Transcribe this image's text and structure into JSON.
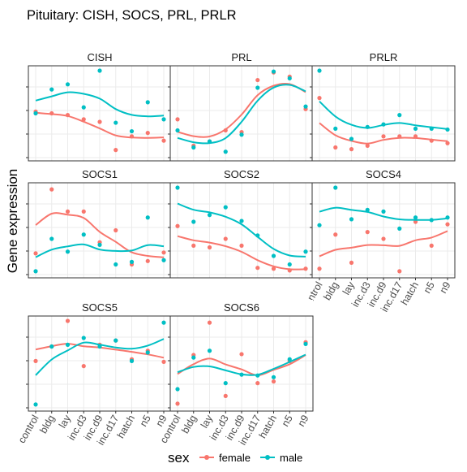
{
  "title": "Pituitary: CISH, SOCS, PRL, PRLR",
  "y_axis_label": "Gene expression",
  "legend": {
    "title": "sex",
    "entries": [
      {
        "label": "female",
        "color": "#F8766D"
      },
      {
        "label": "male",
        "color": "#00BFC4"
      }
    ]
  },
  "chart_data": {
    "type": "scatter",
    "title": "Pituitary: CISH, SOCS, PRL, PRLR",
    "ylabel": "Gene expression",
    "xlabel": "",
    "categories": [
      "control",
      "bldg",
      "lay",
      "inc.d3",
      "inc.d9",
      "inc.d17",
      "hatch",
      "n5",
      "n9"
    ],
    "y_tick_labels_shown": false,
    "grid": true,
    "legend_position": "bottom",
    "smooth_trend_lines": true,
    "panels": [
      {
        "name": "CISH",
        "ylim": [
          0,
          1
        ],
        "series": [
          {
            "name": "female",
            "values": [
              0.52,
              0.5,
              0.48,
              0.43,
              0.4,
              0.07,
              0.23,
              0.27,
              0.18
            ]
          },
          {
            "name": "male",
            "values": [
              0.5,
              0.78,
              0.84,
              0.57,
              1.0,
              0.39,
              0.29,
              0.63,
              0.43
            ]
          }
        ]
      },
      {
        "name": "PRL",
        "ylim": [
          0,
          1
        ],
        "series": [
          {
            "name": "female",
            "values": [
              0.43,
              0.12,
              0.17,
              0.3,
              0.28,
              0.89,
              0.98,
              0.93,
              0.55
            ]
          },
          {
            "name": "male",
            "values": [
              0.3,
              0.1,
              0.17,
              0.05,
              0.25,
              0.8,
              0.99,
              0.91,
              0.58
            ]
          }
        ]
      },
      {
        "name": "PRLR",
        "ylim": [
          0,
          1
        ],
        "series": [
          {
            "name": "female",
            "values": [
              0.68,
              0.1,
              0.08,
              0.12,
              0.23,
              0.23,
              0.23,
              0.18,
              0.15
            ]
          },
          {
            "name": "male",
            "values": [
              1.0,
              0.32,
              0.2,
              0.34,
              0.37,
              0.48,
              0.32,
              0.32,
              0.31
            ]
          }
        ]
      },
      {
        "name": "SOCS1",
        "ylim": [
          0,
          1
        ],
        "series": [
          {
            "name": "female",
            "values": [
              0.23,
              0.98,
              0.72,
              0.72,
              0.36,
              0.5,
              0.1,
              0.14,
              0.24
            ]
          },
          {
            "name": "male",
            "values": [
              0.02,
              0.4,
              0.25,
              0.45,
              0.33,
              0.1,
              0.13,
              0.65,
              0.15
            ]
          }
        ]
      },
      {
        "name": "SOCS2",
        "ylim": [
          0,
          1
        ],
        "series": [
          {
            "name": "female",
            "values": [
              0.55,
              0.32,
              0.3,
              0.4,
              0.32,
              0.06,
              0.05,
              0.03,
              0.05
            ]
          },
          {
            "name": "male",
            "values": [
              1.0,
              0.6,
              0.68,
              0.77,
              0.61,
              0.44,
              0.2,
              0.1,
              0.25
            ]
          }
        ]
      },
      {
        "name": "SOCS4",
        "ylim": [
          0,
          1
        ],
        "series": [
          {
            "name": "female",
            "values": [
              0.05,
              0.45,
              0.12,
              0.48,
              0.4,
              0.02,
              0.6,
              0.32,
              0.57
            ]
          },
          {
            "name": "male",
            "values": [
              0.56,
              1.0,
              0.63,
              0.74,
              0.72,
              0.52,
              0.65,
              0.62,
              0.65
            ]
          }
        ]
      },
      {
        "name": "SOCS5",
        "ylim": [
          0,
          1
        ],
        "series": [
          {
            "name": "female",
            "values": [
              0.53,
              0.7,
              1.0,
              0.47,
              0.72,
              0.77,
              0.55,
              0.65,
              0.52
            ]
          },
          {
            "name": "male",
            "values": [
              0.02,
              0.7,
              0.72,
              0.8,
              0.7,
              0.77,
              0.53,
              0.63,
              0.98
            ]
          }
        ]
      },
      {
        "name": "SOCS6",
        "ylim": [
          0,
          1
        ],
        "series": [
          {
            "name": "female",
            "values": [
              0.03,
              0.6,
              0.98,
              0.12,
              0.61,
              0.27,
              0.29,
              0.53,
              0.75
            ]
          },
          {
            "name": "male",
            "values": [
              0.2,
              0.57,
              0.65,
              0.27,
              0.37,
              0.36,
              0.34,
              0.55,
              0.73
            ]
          }
        ]
      }
    ]
  }
}
